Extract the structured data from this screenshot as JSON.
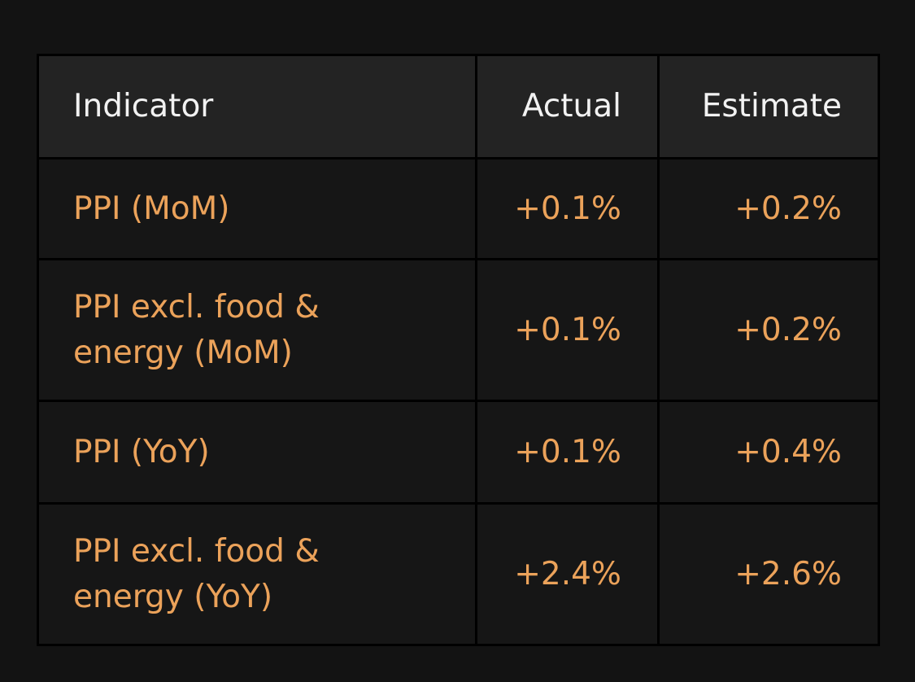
{
  "table": {
    "header": [
      "Indicator",
      "Actual",
      "Estimate"
    ],
    "rows": [
      [
        "PPI (MoM)",
        "+0.1%",
        "+0.2%"
      ],
      [
        "PPI excl. food & energy (MoM)",
        "+0.1%",
        "+0.2%"
      ],
      [
        "PPI (YoY)",
        "+0.1%",
        "+0.4%"
      ],
      [
        "PPI excl. food & energy (YoY)",
        "+2.4%",
        "+2.6%"
      ]
    ]
  }
}
